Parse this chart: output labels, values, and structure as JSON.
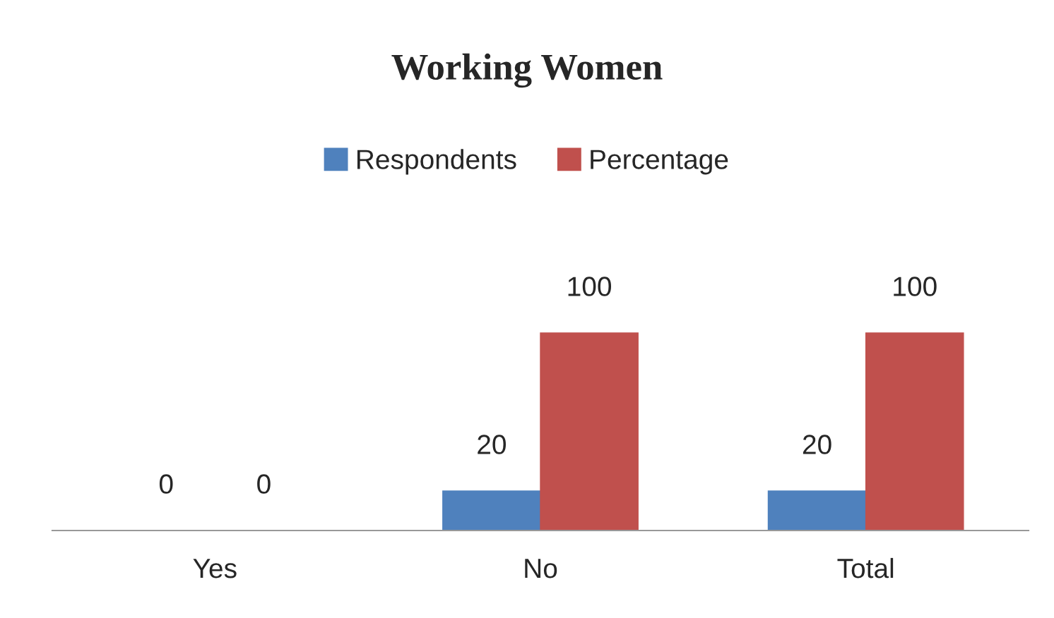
{
  "chart_data": {
    "type": "bar",
    "title": "Working Women",
    "categories": [
      "Yes",
      "No",
      "Total"
    ],
    "series": [
      {
        "name": "Respondents",
        "color": "#4f81bd",
        "values": [
          0,
          20,
          20
        ]
      },
      {
        "name": "Percentage",
        "color": "#c0504d",
        "values": [
          0,
          100,
          100
        ]
      }
    ],
    "data_labels": true,
    "legend": "top",
    "grid": false
  }
}
